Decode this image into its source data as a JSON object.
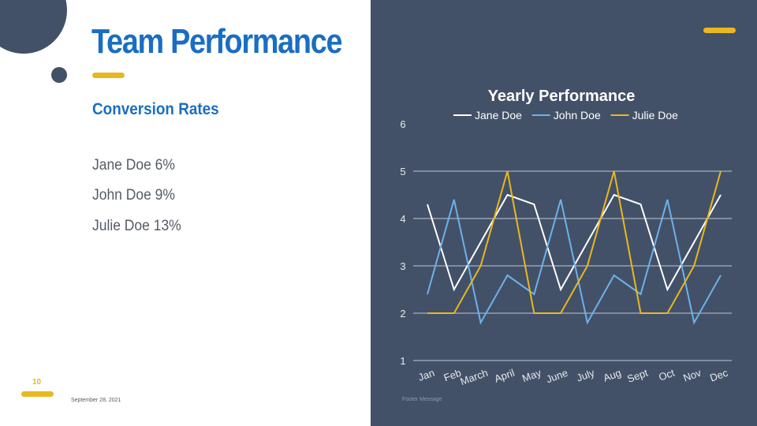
{
  "slide": {
    "title": "Team Performance",
    "subtitle": "Conversion Rates",
    "rates": [
      "Jane Doe 6%",
      "John Doe 9%",
      "Julie Doe 13%"
    ],
    "page_number": "10",
    "date": "September 28, 2021",
    "footer": "Footer Message"
  },
  "colors": {
    "accent_blue": "#1a6ec2",
    "accent_yellow": "#e8b820",
    "panel": "#435168",
    "grid": "#a7b0bf"
  },
  "chart_data": {
    "type": "line",
    "title": "Yearly Performance",
    "categories": [
      "Jan",
      "Feb",
      "March",
      "April",
      "May",
      "June",
      "July",
      "Aug",
      "Sept",
      "Oct",
      "Nov",
      "Dec"
    ],
    "series": [
      {
        "name": "Jane Doe",
        "color": "#ffffff",
        "values": [
          4.3,
          2.5,
          3.5,
          4.5,
          4.3,
          2.5,
          3.5,
          4.5,
          4.3,
          2.5,
          3.5,
          4.5
        ]
      },
      {
        "name": "John Doe",
        "color": "#6cb2ea",
        "values": [
          2.4,
          4.4,
          1.8,
          2.8,
          2.4,
          4.4,
          1.8,
          2.8,
          2.4,
          4.4,
          1.8,
          2.8
        ]
      },
      {
        "name": "Julie Doe",
        "color": "#e8b820",
        "values": [
          2,
          2,
          3,
          5,
          2,
          2,
          3,
          5,
          2,
          2,
          3,
          5
        ]
      }
    ],
    "ylim": [
      1,
      6
    ],
    "yticks": [
      "1",
      "2",
      "3",
      "4",
      "5",
      "6"
    ],
    "grid": true,
    "legend": "top"
  }
}
